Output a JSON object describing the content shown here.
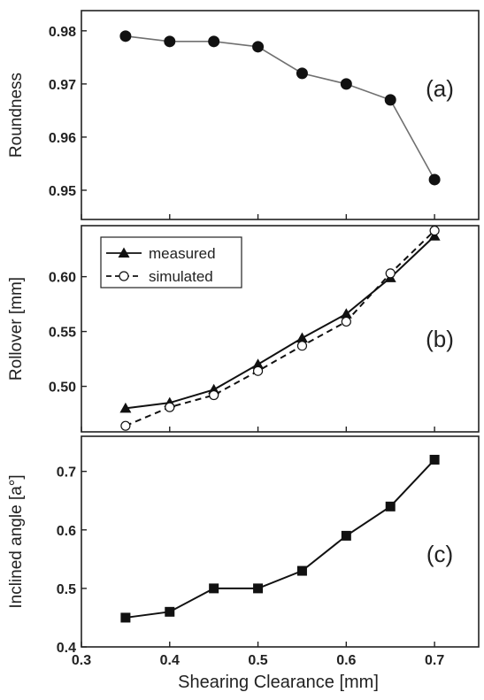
{
  "chart_data": [
    {
      "type": "line",
      "panel": "(a)",
      "ylabel": "Roundness",
      "xlim": [
        0.3,
        0.75
      ],
      "ylim": [
        0.9445,
        0.9838
      ],
      "x_ticks": [
        "0.3",
        "0.4",
        "0.5",
        "0.6",
        "0.7"
      ],
      "y_ticks": [
        "0.95",
        "0.96",
        "0.97",
        "0.98"
      ],
      "series": [
        {
          "marker": "filled-circle",
          "line": "gray-solid",
          "x": [
            0.35,
            0.4,
            0.45,
            0.5,
            0.55,
            0.6,
            0.65,
            0.7
          ],
          "y": [
            0.979,
            0.978,
            0.978,
            0.977,
            0.972,
            0.97,
            0.967,
            0.952
          ]
        }
      ]
    },
    {
      "type": "line",
      "panel": "(b)",
      "ylabel": "Rollover [mm]",
      "xlim": [
        0.3,
        0.75
      ],
      "ylim": [
        0.4585,
        0.6465
      ],
      "x_ticks": [
        "0.3",
        "0.4",
        "0.5",
        "0.6",
        "0.7"
      ],
      "y_ticks": [
        "0.50",
        "0.55",
        "0.60"
      ],
      "legend": "top-left",
      "series": [
        {
          "name": "measured",
          "marker": "filled-triangle",
          "line": "solid",
          "x": [
            0.35,
            0.4,
            0.45,
            0.5,
            0.55,
            0.6,
            0.65,
            0.7
          ],
          "y": [
            0.48,
            0.485,
            0.497,
            0.52,
            0.544,
            0.566,
            0.599,
            0.637
          ]
        },
        {
          "name": "simulated",
          "marker": "open-circle",
          "line": "dashed",
          "x": [
            0.35,
            0.4,
            0.45,
            0.5,
            0.55,
            0.6,
            0.65,
            0.7
          ],
          "y": [
            0.464,
            0.481,
            0.492,
            0.514,
            0.537,
            0.559,
            0.603,
            0.642
          ]
        }
      ]
    },
    {
      "type": "line",
      "panel": "(c)",
      "ylabel": "Inclined angle [a°]",
      "xlabel": "Shearing Clearance [mm]",
      "xlim": [
        0.3,
        0.75
      ],
      "ylim": [
        0.4,
        0.76
      ],
      "x_ticks": [
        "0.3",
        "0.4",
        "0.5",
        "0.6",
        "0.7"
      ],
      "y_ticks": [
        "0.4",
        "0.5",
        "0.6",
        "0.7"
      ],
      "series": [
        {
          "marker": "filled-square",
          "line": "solid",
          "x": [
            0.35,
            0.4,
            0.45,
            0.5,
            0.55,
            0.6,
            0.65,
            0.7
          ],
          "y": [
            0.45,
            0.46,
            0.5,
            0.5,
            0.53,
            0.59,
            0.64,
            0.72
          ]
        }
      ]
    }
  ]
}
